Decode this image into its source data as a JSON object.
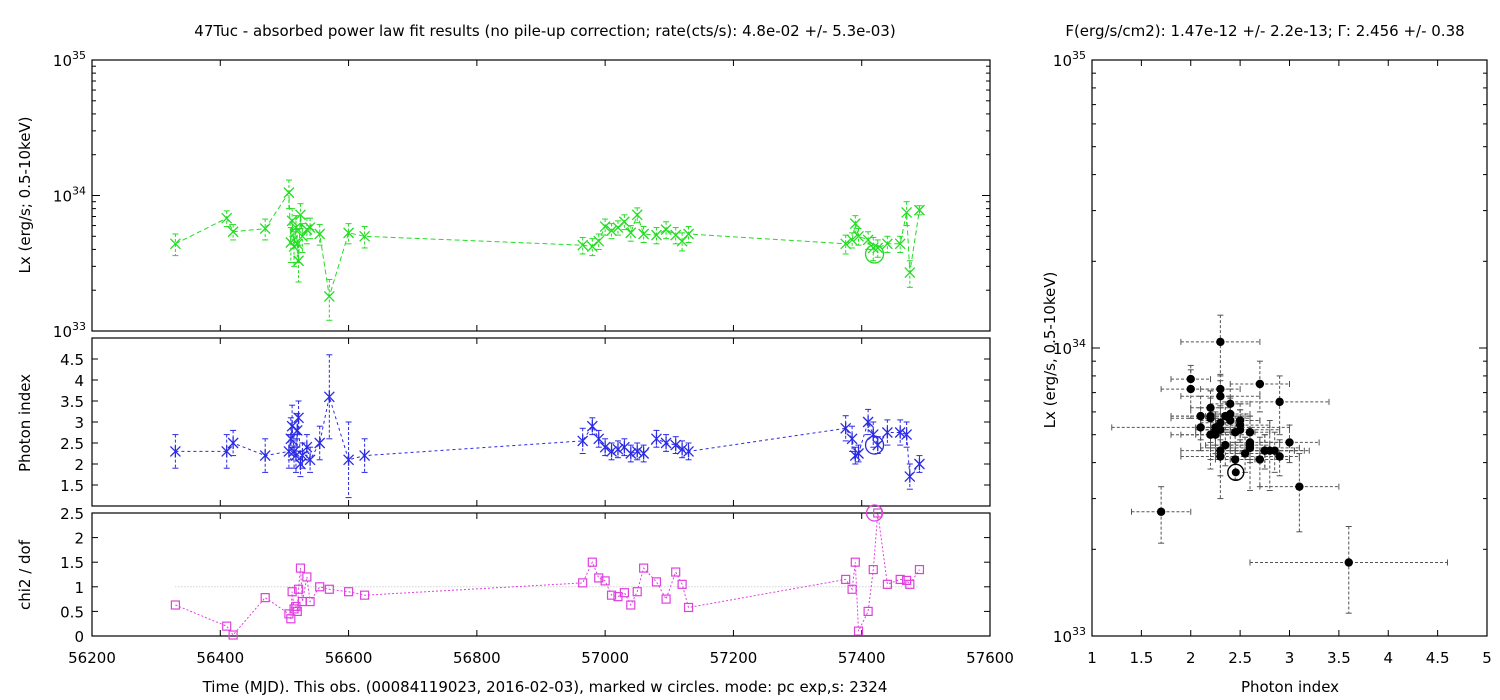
{
  "title_left": "47Tuc  - absorbed power law fit results (no pile-up correction; rate(cts/s): 4.8e-02 +/- 5.3e-03)",
  "title_right": "F(erg/s/cm2): 1.47e-12 +/- 2.2e-13; Γ: 2.456 +/- 0.38",
  "x_label_time": "Time (MJD). This obs. (00084119023, 2016-02-03), marked w circles. mode: pc exp,s: 2324",
  "colors": {
    "lx": "#22dd22",
    "gamma": "#2a2ae6",
    "chi": "#e040e0",
    "scatter": "#000000"
  },
  "chart_data": [
    {
      "id": "lx-vs-time",
      "type": "line",
      "ylabel": "Lx (erg/s; 0.5-10keV)",
      "xlim": [
        56200,
        57600
      ],
      "ylim": [
        1e+33,
        1e+35
      ],
      "yscale": "log",
      "y_ticks": [
        {
          "value": 1e+33,
          "base": "10",
          "exp": "33"
        },
        {
          "value": 1e+34,
          "base": "10",
          "exp": "34"
        },
        {
          "value": 1e+35,
          "base": "10",
          "exp": "35"
        }
      ],
      "marker": "x",
      "series": [
        {
          "x": [
            56330,
            56410,
            56420,
            56470,
            56507,
            56510,
            56512,
            56515,
            56518,
            56520,
            56522,
            56525,
            56528,
            56535,
            56540,
            56555,
            56570,
            56600,
            56625,
            56965,
            56980,
            56990,
            57000,
            57010,
            57020,
            57030,
            57040,
            57050,
            57060,
            57080,
            57095,
            57110,
            57120,
            57130,
            57375,
            57385,
            57390,
            57395,
            57410,
            57418,
            57425,
            57440,
            57460,
            57470,
            57475,
            57490
          ],
          "y": [
            4.4e+33,
            6.8e+33,
            5.4e+33,
            5.7e+33,
            1.05e+34,
            4.5e+33,
            6.5e+33,
            4.2e+33,
            5.8e+33,
            4.4e+33,
            3.3e+33,
            7.2e+33,
            5e+33,
            5.6e+33,
            5.8e+33,
            5.2e+33,
            1.8e+33,
            5.3e+33,
            5e+33,
            4.3e+33,
            4.2e+33,
            4.6e+33,
            5.9e+33,
            5.5e+33,
            5.8e+33,
            6.4e+33,
            5.3e+33,
            7.2e+33,
            5.2e+33,
            5.1e+33,
            5.6e+33,
            5.1e+33,
            4.6e+33,
            5.2e+33,
            4.4e+33,
            4.7e+33,
            6.2e+33,
            5e+33,
            4.7e+33,
            4.1e+33,
            4.1e+33,
            4.4e+33,
            4.4e+33,
            7.5e+33,
            2.7e+33,
            7.8e+33
          ],
          "err": [
            8e+32,
            9e+32,
            7e+32,
            1e+33,
            2.5e+33,
            1.3e+33,
            1.5e+33,
            1.2e+33,
            1.3e+33,
            1.2e+33,
            1e+33,
            1.5e+33,
            1.2e+33,
            1.2e+33,
            1e+33,
            9e+32,
            6e+32,
            9e+32,
            9e+32,
            6e+32,
            6e+32,
            6e+32,
            8e+32,
            7e+32,
            7e+32,
            8e+32,
            7e+32,
            9e+32,
            7e+32,
            7e+32,
            8e+32,
            7e+32,
            7e+32,
            7e+32,
            7e+32,
            6e+32,
            9e+32,
            7e+32,
            7e+32,
            8e+32,
            6e+32,
            6e+32,
            6e+32,
            1.5e+33,
            6e+32,
            6e+32
          ]
        }
      ],
      "highlight": {
        "x": 57420,
        "y": 3.7e+33
      }
    },
    {
      "id": "gamma-vs-time",
      "type": "line",
      "ylabel": "Photon index",
      "xlim": [
        56200,
        57600
      ],
      "ylim": [
        1.0,
        5.0
      ],
      "y_ticks": [
        "1.5",
        "2",
        "2.5",
        "3",
        "3.5",
        "4",
        "4.5"
      ],
      "marker": "asterisk",
      "series": [
        {
          "x": [
            56330,
            56410,
            56420,
            56470,
            56507,
            56510,
            56512,
            56515,
            56518,
            56520,
            56522,
            56525,
            56528,
            56535,
            56540,
            56555,
            56570,
            56600,
            56625,
            56965,
            56980,
            56990,
            57000,
            57010,
            57020,
            57030,
            57040,
            57050,
            57060,
            57080,
            57095,
            57110,
            57120,
            57130,
            57375,
            57385,
            57390,
            57395,
            57410,
            57418,
            57425,
            57440,
            57460,
            57470,
            57475,
            57490
          ],
          "y": [
            2.3,
            2.3,
            2.5,
            2.2,
            2.3,
            2.6,
            2.9,
            2.3,
            2.2,
            2.8,
            3.1,
            2.0,
            2.2,
            2.4,
            2.1,
            2.5,
            3.6,
            2.1,
            2.2,
            2.55,
            2.9,
            2.6,
            2.4,
            2.3,
            2.35,
            2.4,
            2.25,
            2.3,
            2.25,
            2.6,
            2.5,
            2.45,
            2.35,
            2.3,
            2.85,
            2.6,
            2.2,
            2.25,
            3.0,
            2.7,
            2.45,
            2.75,
            2.75,
            2.7,
            1.7,
            2.0
          ],
          "err": [
            0.4,
            0.4,
            0.3,
            0.4,
            0.4,
            0.5,
            0.5,
            0.4,
            0.4,
            0.4,
            0.4,
            0.3,
            0.3,
            0.3,
            0.3,
            0.4,
            1.0,
            0.9,
            0.4,
            0.3,
            0.2,
            0.2,
            0.2,
            0.2,
            0.2,
            0.2,
            0.2,
            0.2,
            0.2,
            0.2,
            0.2,
            0.2,
            0.2,
            0.2,
            0.3,
            0.3,
            0.2,
            0.2,
            0.3,
            0.3,
            0.2,
            0.3,
            0.3,
            0.3,
            0.3,
            0.2
          ]
        }
      ],
      "highlight": {
        "x": 57420,
        "y": 2.45
      }
    },
    {
      "id": "chi-vs-time",
      "type": "line",
      "ylabel": "chi2 / dof",
      "xlim": [
        56200,
        57600
      ],
      "ylim": [
        0,
        2.5
      ],
      "x_ticks": [
        "56200",
        "56400",
        "56600",
        "56800",
        "57000",
        "57200",
        "57400",
        "57600"
      ],
      "y_ticks": [
        "0",
        "0.5",
        "1",
        "1.5",
        "2",
        "2.5"
      ],
      "reference_line": 1,
      "marker": "square",
      "series": [
        {
          "x": [
            56330,
            56410,
            56420,
            56470,
            56507,
            56510,
            56512,
            56515,
            56518,
            56520,
            56522,
            56525,
            56528,
            56535,
            56540,
            56555,
            56570,
            56600,
            56625,
            56965,
            56980,
            56990,
            57000,
            57010,
            57020,
            57030,
            57040,
            57050,
            57060,
            57080,
            57095,
            57110,
            57120,
            57130,
            57375,
            57385,
            57390,
            57395,
            57410,
            57418,
            57425,
            57440,
            57460,
            57470,
            57475,
            57490
          ],
          "y": [
            0.63,
            0.2,
            0.02,
            0.78,
            0.45,
            0.35,
            0.9,
            0.55,
            0.6,
            0.5,
            0.95,
            1.38,
            0.7,
            1.2,
            0.7,
            1.0,
            0.95,
            0.9,
            0.83,
            1.08,
            1.5,
            1.18,
            1.12,
            0.83,
            0.8,
            0.88,
            0.63,
            0.9,
            1.38,
            1.1,
            0.75,
            1.3,
            1.05,
            0.58,
            1.15,
            0.95,
            1.5,
            0.1,
            0.5,
            1.35,
            2.5,
            1.05,
            1.15,
            1.13,
            1.05,
            1.35
          ]
        }
      ],
      "highlight": {
        "x": 57420,
        "y": 2.5
      }
    },
    {
      "id": "lx-vs-gamma",
      "type": "scatter",
      "xlabel": "Photon index",
      "ylabel": "Lx (erg/s, 0.5-10keV)",
      "xlim": [
        1,
        5
      ],
      "ylim": [
        1e+33,
        1e+35
      ],
      "yscale": "log",
      "x_ticks": [
        "1",
        "1.5",
        "2",
        "2.5",
        "3",
        "3.5",
        "4",
        "4.5",
        "5"
      ],
      "y_ticks": [
        {
          "value": 1e+33,
          "base": "10",
          "exp": "33"
        },
        {
          "value": 1e+34,
          "base": "10",
          "exp": "34"
        },
        {
          "value": 1e+35,
          "base": "10",
          "exp": "35"
        }
      ],
      "points": {
        "x": [
          2.3,
          2.3,
          2.5,
          2.2,
          2.3,
          2.6,
          2.9,
          2.3,
          2.2,
          2.8,
          3.1,
          2.0,
          2.2,
          2.4,
          2.1,
          2.5,
          3.6,
          2.1,
          2.2,
          2.55,
          2.9,
          2.6,
          2.4,
          2.3,
          2.35,
          2.4,
          2.25,
          2.3,
          2.25,
          2.6,
          2.5,
          2.45,
          2.35,
          2.3,
          2.85,
          2.6,
          2.2,
          2.25,
          3.0,
          2.7,
          2.45,
          2.75,
          2.75,
          2.7,
          1.7,
          2.0
        ],
        "y": [
          4.4e+33,
          6.8e+33,
          5.4e+33,
          5.7e+33,
          1.05e+34,
          4.5e+33,
          6.5e+33,
          4.2e+33,
          5.8e+33,
          4.4e+33,
          3.3e+33,
          7.2e+33,
          5e+33,
          5.6e+33,
          5.8e+33,
          5.2e+33,
          1.8e+33,
          5.3e+33,
          5e+33,
          4.3e+33,
          4.2e+33,
          4.6e+33,
          5.9e+33,
          5.5e+33,
          5.8e+33,
          6.4e+33,
          5.3e+33,
          7.2e+33,
          5.2e+33,
          5.1e+33,
          5.6e+33,
          5.1e+33,
          4.6e+33,
          5.2e+33,
          4.4e+33,
          4.7e+33,
          6.2e+33,
          5e+33,
          4.7e+33,
          4.1e+33,
          4.1e+33,
          4.4e+33,
          4.4e+33,
          7.5e+33,
          2.7e+33,
          7.8e+33
        ]
      },
      "highlight": {
        "x": 2.456,
        "y": 3.7e+33
      }
    }
  ]
}
